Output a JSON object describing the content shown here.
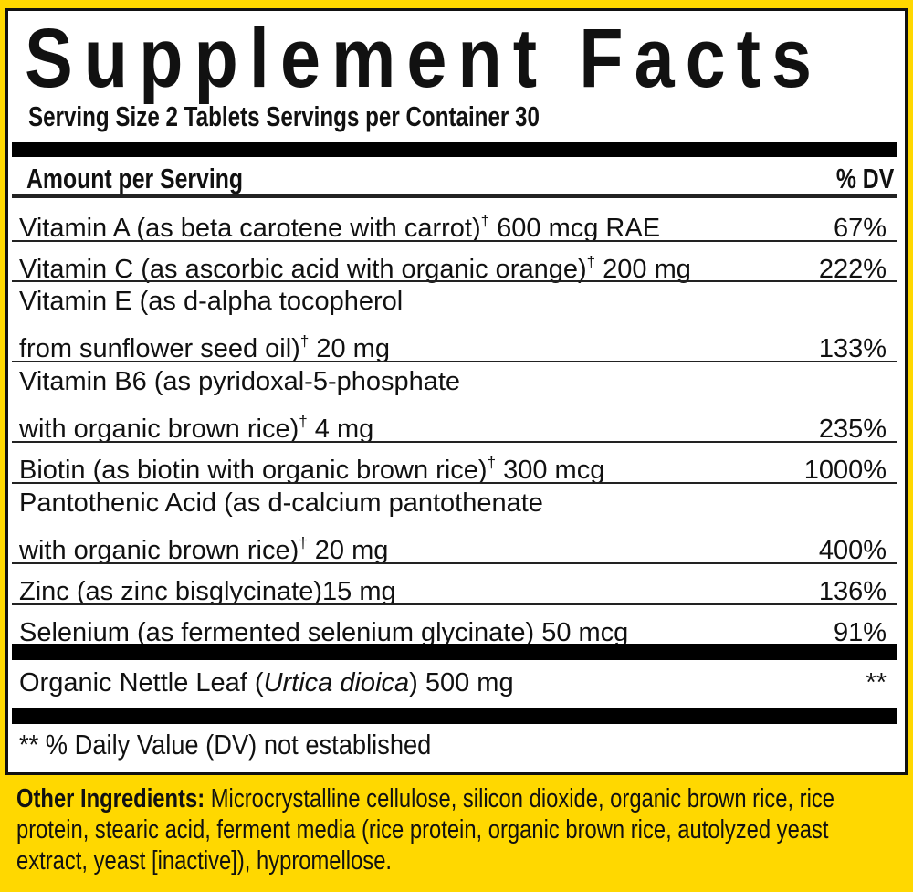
{
  "title": "Supplement Facts",
  "serving": "Serving Size 2 Tablets  Servings per Container 30",
  "header": {
    "amount": "Amount per Serving",
    "dv": "% DV"
  },
  "nutrients": [
    {
      "lines": [],
      "last": "Vitamin A (as beta carotene with carrot)",
      "dagger": "†",
      "amount": " 600 mcg RAE",
      "dv": "67%"
    },
    {
      "lines": [],
      "last": "Vitamin C (as ascorbic acid with organic orange)",
      "dagger": "†",
      "amount": " 200 mg",
      "dv": "222%"
    },
    {
      "lines": [
        "Vitamin E (as d-alpha tocopherol"
      ],
      "last": "from sunflower seed oil)",
      "dagger": "†",
      "amount": " 20 mg",
      "dv": "133%"
    },
    {
      "lines": [
        "Vitamin B6 (as pyridoxal-5-phosphate"
      ],
      "last": "with organic brown rice)",
      "dagger": "†",
      "amount": " 4 mg",
      "dv": "235%"
    },
    {
      "lines": [],
      "last": "Biotin (as biotin with organic brown rice)",
      "dagger": "†",
      "amount": " 300 mcg",
      "dv": "1000%"
    },
    {
      "lines": [
        "Pantothenic Acid (as d-calcium pantothenate"
      ],
      "last": "with organic brown rice)",
      "dagger": "†",
      "amount": " 20 mg",
      "dv": "400%"
    },
    {
      "lines": [],
      "last": "Zinc (as zinc bisglycinate)",
      "dagger": "",
      "amount": "15 mg",
      "dv": "136%"
    },
    {
      "lines": [],
      "last": "Selenium (as fermented selenium glycinate)",
      "dagger": "",
      "amount": " 50 mcg",
      "dv": "91%"
    }
  ],
  "herb": {
    "pre": "Organic Nettle Leaf (",
    "latin": "Urtica dioica",
    "post": ") 500 mg",
    "dv": "**"
  },
  "footnote": "** % Daily Value (DV) not established",
  "other": {
    "label": "Other Ingredients:",
    "text": " Microcrystalline cellulose, silicon dioxide, organic brown rice, rice protein, stearic acid, ferment media (rice protein, organic brown rice, autolyzed yeast extract, yeast [inactive]), hypromellose."
  },
  "colors": {
    "background": "#FFD800",
    "panel": "#FFFFFF",
    "ink": "#111111"
  }
}
